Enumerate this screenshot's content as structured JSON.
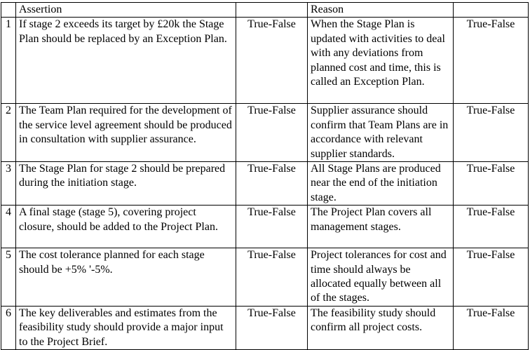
{
  "headers": {
    "number": "",
    "assertion": "Assertion",
    "answer1": "",
    "reason": "Reason",
    "answer2": ""
  },
  "rows": [
    {
      "num": "1",
      "assertion": "If stage 2 exceeds its target by £20k the Stage Plan should be replaced by an Exception Plan.",
      "a1": "True-False",
      "reason": "When the Stage Plan is updated with activities to deal with any deviations from planned cost and time, this is called an Exception Plan.",
      "a2": "True-False"
    },
    {
      "num": "2",
      "assertion": "The Team Plan required for the development of the service level agreement should be produced in consultation with supplier assurance.",
      "a1": "True-False",
      "reason": "Supplier assurance should confirm that Team Plans are in accordance with relevant supplier standards.",
      "a2": "True-False"
    },
    {
      "num": "3",
      "assertion": "The Stage Plan for stage 2 should be prepared during the initiation stage.",
      "a1": "True-False",
      "reason": "All Stage Plans are produced near the end of the initiation stage.",
      "a2": "True-False"
    },
    {
      "num": "4",
      "assertion": "A final stage (stage 5), covering project closure, should be added to the Project Plan.",
      "a1": "True-False",
      "reason": "The Project Plan covers all management stages.",
      "a2": "True-False"
    },
    {
      "num": "5",
      "assertion": "The cost tolerance planned for each stage should be +5% '-5%.",
      "a1": "True-False",
      "reason": "Project tolerances for cost and time should always be allocated equally between all of the stages.",
      "a2": "True-False"
    },
    {
      "num": "6",
      "assertion": "The key deliverables and estimates from the feasibility study should provide a major input to the Project Brief.",
      "a1": "True-False",
      "reason": "The feasibility study should confirm all project costs.",
      "a2": "True-False"
    }
  ]
}
